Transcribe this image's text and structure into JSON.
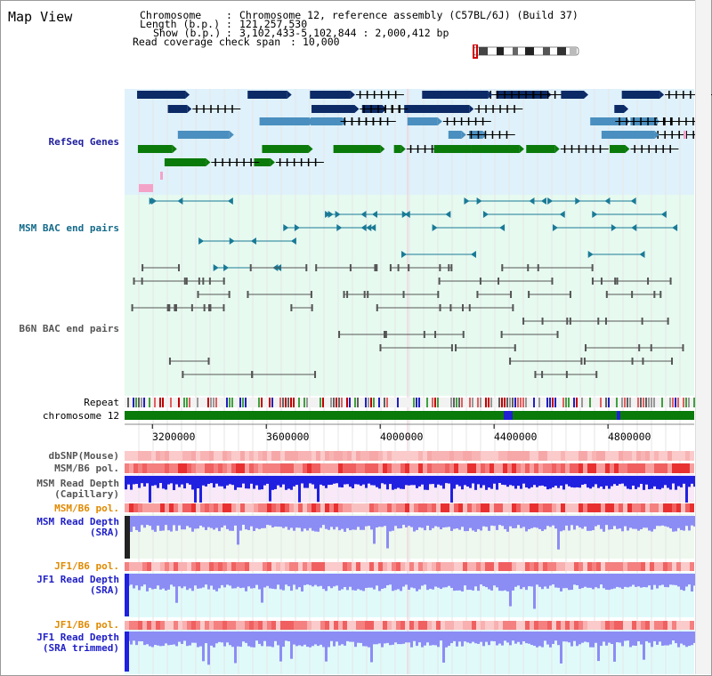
{
  "pane": {
    "title": "Map View"
  },
  "info": {
    "chromosome_key": "Chromosome",
    "chromosome_value": "Chromosome 12, reference assembly (C57BL/6J) (Build 37)",
    "length_key": "Length (b.p.)",
    "length_value": "121,257,530",
    "show_key": "Show (b.p.)",
    "show_value": "3,102,433-5,102,844 : 2,000,412 bp",
    "coverage_key": "Read coverage check span",
    "coverage_value": "10,000"
  },
  "tracks": {
    "refseq": "RefSeq Genes",
    "msm_bac": "MSM BAC end pairs",
    "b6n_bac": "B6N BAC end pairs",
    "repeat": "Repeat",
    "chromosome": "chromosome 12",
    "dbsnp": "dbSNP(Mouse)",
    "msm_b6_pol_1": "MSM/B6 pol.",
    "msm_read_depth_cap_1": "MSM Read Depth",
    "msm_read_depth_cap_2": "(Capillary)",
    "msm_b6_pol_2": "MSM/B6 pol.",
    "msm_read_depth_sra_1": "MSM Read Depth",
    "msm_read_depth_sra_2": "(SRA)",
    "jf1_b6_pol_1": "JF1/B6 pol.",
    "jf1_read_depth_sra_1": "JF1 Read Depth",
    "jf1_read_depth_sra_2": "(SRA)",
    "jf1_b6_pol_2": "JF1/B6 pol.",
    "jf1_read_depth_trim_1": "JF1 Read Depth",
    "jf1_read_depth_trim_2": "(SRA trimmed)"
  },
  "axis": {
    "range_bp": [
      3102433,
      5102844
    ],
    "ticks": [
      {
        "bp": 3200000,
        "label": "3200000"
      },
      {
        "bp": 3600000,
        "label": "3600000"
      },
      {
        "bp": 4000000,
        "label": "4000000"
      },
      {
        "bp": 4400000,
        "label": "4400000"
      },
      {
        "bp": 4800000,
        "label": "4800000"
      }
    ]
  },
  "colors": {
    "gene_navy": "#0b2a66",
    "gene_steel": "#4a8fbf",
    "gene_green": "#0a7a0a",
    "gene_pink": "#f4a3c8",
    "track_bg_blue": "#dff1fb",
    "track_bg_green": "#e6faf0",
    "msm_bac": "#1a7a96",
    "b6n_bac": "#555555",
    "chromosome": "#0a7a0a",
    "read_depth_blue": "#2020e0",
    "read_depth_light": "#8c8cf5",
    "pol_red": "#f04040"
  }
}
